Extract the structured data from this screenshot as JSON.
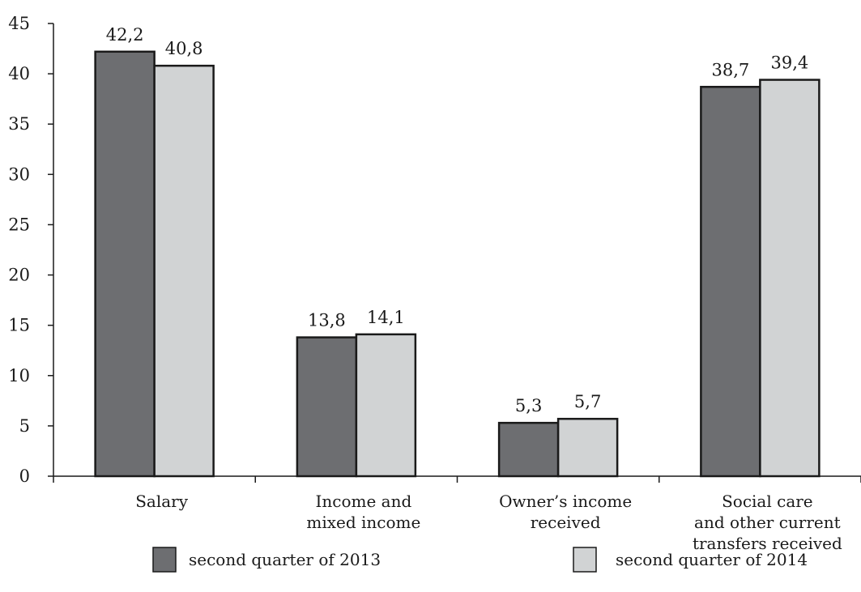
{
  "chart_data": {
    "type": "bar",
    "categories": [
      [
        "Salary"
      ],
      [
        "Income and",
        "mixed income"
      ],
      [
        "Owner’s income",
        "received"
      ],
      [
        "Social care",
        "and other current",
        "transfers received"
      ]
    ],
    "series": [
      {
        "name": "second quarter of 2013",
        "color": "#6d6e71",
        "values": [
          42.2,
          13.8,
          5.3,
          38.7
        ],
        "labels": [
          "42,2",
          "13,8",
          "5,3",
          "38,7"
        ]
      },
      {
        "name": "second quarter of 2014",
        "color": "#d1d3d4",
        "values": [
          40.8,
          14.1,
          5.7,
          39.4
        ],
        "labels": [
          "40,8",
          "14,1",
          "5,7",
          "39,4"
        ]
      }
    ],
    "ylim": [
      0,
      45
    ],
    "yticks": [
      0,
      5,
      10,
      15,
      20,
      25,
      30,
      35,
      40,
      45
    ],
    "grid": false,
    "legend": "bottom"
  }
}
